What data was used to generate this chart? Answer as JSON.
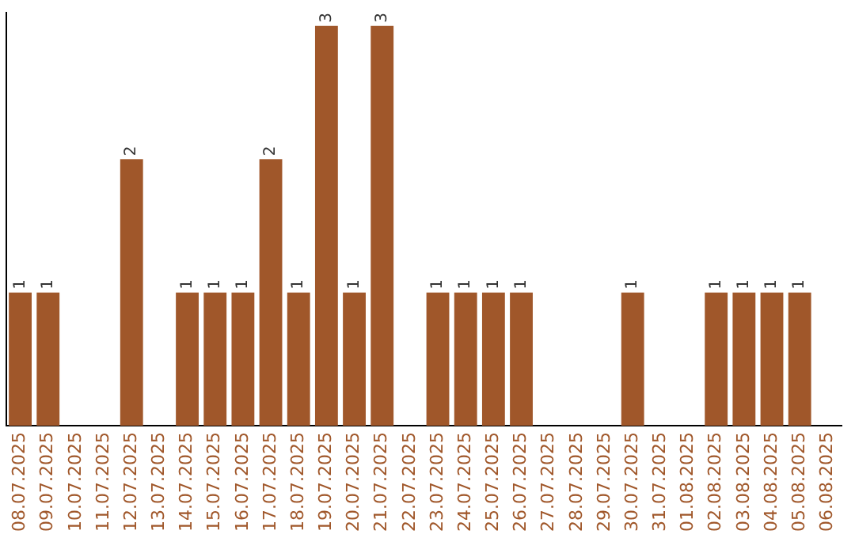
{
  "chart_data": {
    "type": "bar",
    "categories": [
      "08.07.2025",
      "09.07.2025",
      "10.07.2025",
      "11.07.2025",
      "12.07.2025",
      "13.07.2025",
      "14.07.2025",
      "15.07.2025",
      "16.07.2025",
      "17.07.2025",
      "18.07.2025",
      "19.07.2025",
      "20.07.2025",
      "21.07.2025",
      "22.07.2025",
      "23.07.2025",
      "24.07.2025",
      "25.07.2025",
      "26.07.2025",
      "27.07.2025",
      "28.07.2025",
      "29.07.2025",
      "30.07.2025",
      "31.07.2025",
      "01.08.2025",
      "02.08.2025",
      "03.08.2025",
      "04.08.2025",
      "05.08.2025",
      "06.08.2025"
    ],
    "values": [
      1,
      1,
      0,
      0,
      2,
      0,
      1,
      1,
      1,
      2,
      1,
      3,
      1,
      3,
      0,
      1,
      1,
      1,
      1,
      0,
      0,
      0,
      1,
      0,
      0,
      1,
      1,
      1,
      1,
      0
    ],
    "value_labels": [
      "1",
      "1",
      null,
      null,
      "2",
      null,
      "1",
      "1",
      "1",
      "2",
      "1",
      "3",
      "1",
      "3",
      null,
      "1",
      "1",
      "1",
      "1",
      null,
      null,
      null,
      "1",
      null,
      null,
      "1",
      "1",
      "1",
      "1",
      null
    ],
    "color": "#a0572a",
    "ylim": [
      0,
      3.1
    ],
    "tick_labels": "x",
    "grid": false,
    "legend": false
  }
}
